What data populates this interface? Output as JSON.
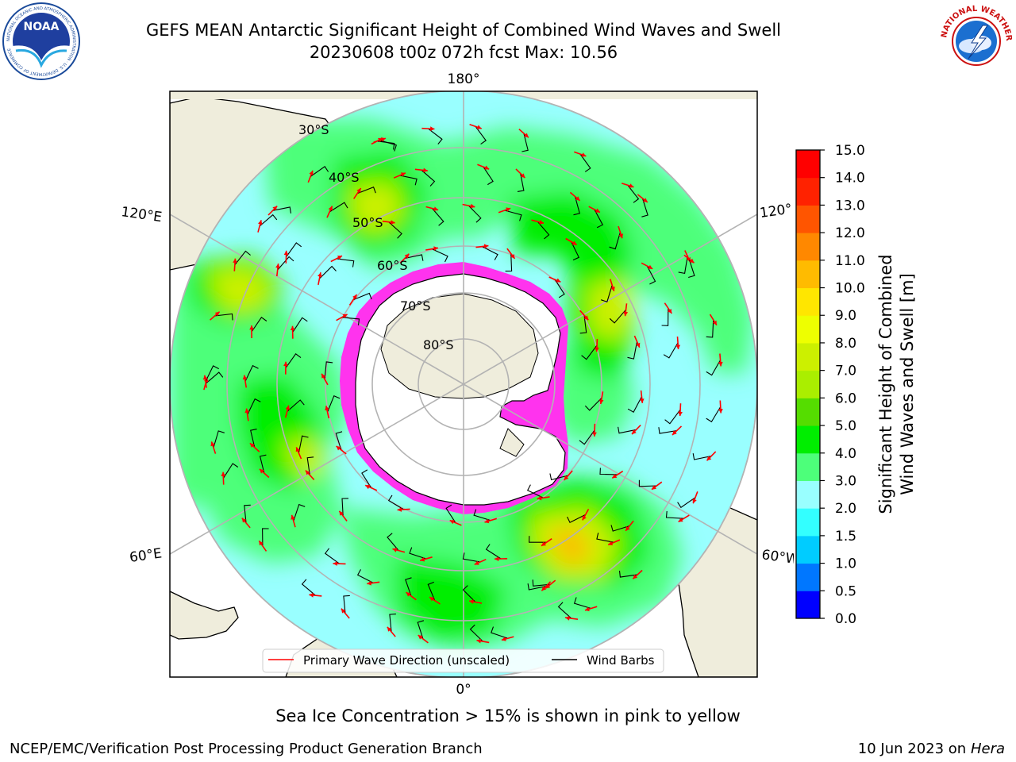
{
  "header": {
    "title_line1": "GEFS MEAN Antarctic Significant Height of Combined Wind Waves and Swell",
    "title_line2": "20230608 t00z 072h fcst   Max: 10.56"
  },
  "logos": {
    "left": "NOAA",
    "left_ring": "NATIONAL OCEANIC AND ATMOSPHERIC ADMINISTRATION · U.S. DEPARTMENT OF COMMERCE",
    "right_ring": "NATIONAL WEATHER SERVICE"
  },
  "map": {
    "projection": "south-polar-stereographic",
    "lon_labels": {
      "top": "180°",
      "bottom": "0°",
      "left_upper": "120°E",
      "left_lower": "60°E",
      "right_upper": "120°",
      "right_lower": "60°W"
    },
    "lat_labels": [
      "30°S",
      "40°S",
      "50°S",
      "60°S",
      "70°S",
      "80°S"
    ],
    "legend": {
      "wave_label": "Primary Wave Direction (unscaled)",
      "barb_label": "Wind Barbs",
      "wave_color": "#ff0000",
      "barb_color": "#000000"
    },
    "colors": {
      "land": "#efeddc",
      "ice_shelf": "#ffffff",
      "ice_edge": "#ff33ee",
      "ice_edge_inner": "#ff9933"
    }
  },
  "colorbar": {
    "label_line1": "Significant Height of Combined",
    "label_line2": "Wind Waves and Swell [m]",
    "ticks": [
      "0.0",
      "0.5",
      "1.0",
      "1.5",
      "2.0",
      "3.0",
      "4.0",
      "5.0",
      "6.0",
      "7.0",
      "8.0",
      "9.0",
      "10.0",
      "11.0",
      "12.0",
      "13.0",
      "14.0",
      "15.0"
    ],
    "colors": [
      "#0000ff",
      "#0077ff",
      "#00ccff",
      "#33ffff",
      "#99ffff",
      "#4dff7a",
      "#00ee00",
      "#55dd00",
      "#aaee00",
      "#ccf000",
      "#eeff00",
      "#ffe600",
      "#ffbb00",
      "#ff8800",
      "#ff5500",
      "#ff2200",
      "#ff0000"
    ]
  },
  "footer": {
    "ice_note": "Sea Ice Concentration > 15% is shown in pink to yellow",
    "left": "NCEP/EMC/Verification Post Processing Product Generation Branch",
    "right_date": "10 Jun 2023 on",
    "right_host": "Hera"
  }
}
